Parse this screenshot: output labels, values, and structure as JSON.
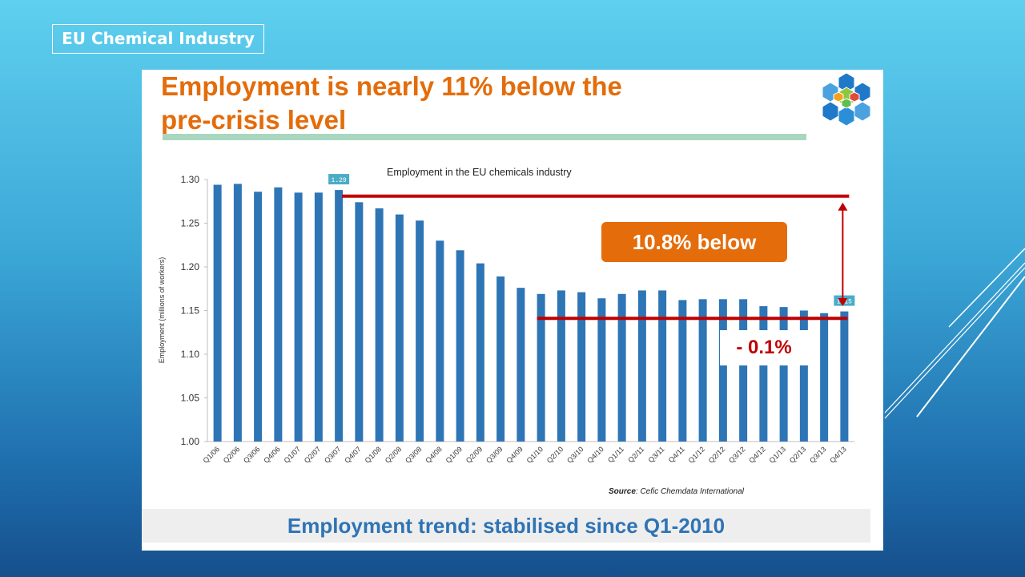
{
  "slide": {
    "tag": "EU Chemical Industry"
  },
  "headline": {
    "line1": "Employment is nearly 11% below the",
    "line2": "pre-crisis level"
  },
  "logo_icon": "hexagon-molecule-icon",
  "callouts": {
    "decline": "10.8% below",
    "recent": "- 0.1%"
  },
  "bottom": {
    "text": "Employment trend: stabilised since Q1-2010"
  },
  "colors": {
    "bar": "#2e75b6",
    "arrow": "#c00000",
    "accent": "#e46c0a",
    "label_box": "#4bacc6"
  },
  "chart_data": {
    "type": "bar",
    "title": "Employment in the EU chemicals industry",
    "ylabel": "Employment (millions of workers)",
    "xlabel": "",
    "ylim": [
      1.0,
      1.3
    ],
    "yticks": [
      "1.00",
      "1.05",
      "1.10",
      "1.15",
      "1.20",
      "1.25",
      "1.30"
    ],
    "source_label": "Source",
    "source_text": ": Cefic Chemdata International",
    "categories": [
      "Q1/06",
      "Q2/06",
      "Q3/06",
      "Q4/06",
      "Q1/07",
      "Q2/07",
      "Q3/07",
      "Q4/07",
      "Q1/08",
      "Q2/08",
      "Q3/08",
      "Q4/08",
      "Q1/09",
      "Q2/09",
      "Q3/09",
      "Q4/09",
      "Q1/10",
      "Q2/10",
      "Q3/10",
      "Q4/10",
      "Q1/11",
      "Q2/11",
      "Q3/11",
      "Q4/11",
      "Q1/12",
      "Q2/12",
      "Q3/12",
      "Q4/12",
      "Q1/13",
      "Q2/13",
      "Q3/13",
      "Q4/13"
    ],
    "values": [
      1.294,
      1.295,
      1.286,
      1.291,
      1.285,
      1.285,
      1.288,
      1.274,
      1.267,
      1.26,
      1.253,
      1.23,
      1.219,
      1.204,
      1.189,
      1.176,
      1.169,
      1.173,
      1.171,
      1.164,
      1.169,
      1.173,
      1.173,
      1.162,
      1.163,
      1.163,
      1.163,
      1.155,
      1.154,
      1.15,
      1.147,
      1.149
    ],
    "data_labels": [
      {
        "category": "Q3/07",
        "text": "1.29"
      },
      {
        "category": "Q4/13",
        "text": "1.15"
      }
    ],
    "annotations": {
      "peak_line_value": 1.281,
      "low_line_value": 1.141,
      "low_line_from": "Q1/10"
    }
  }
}
